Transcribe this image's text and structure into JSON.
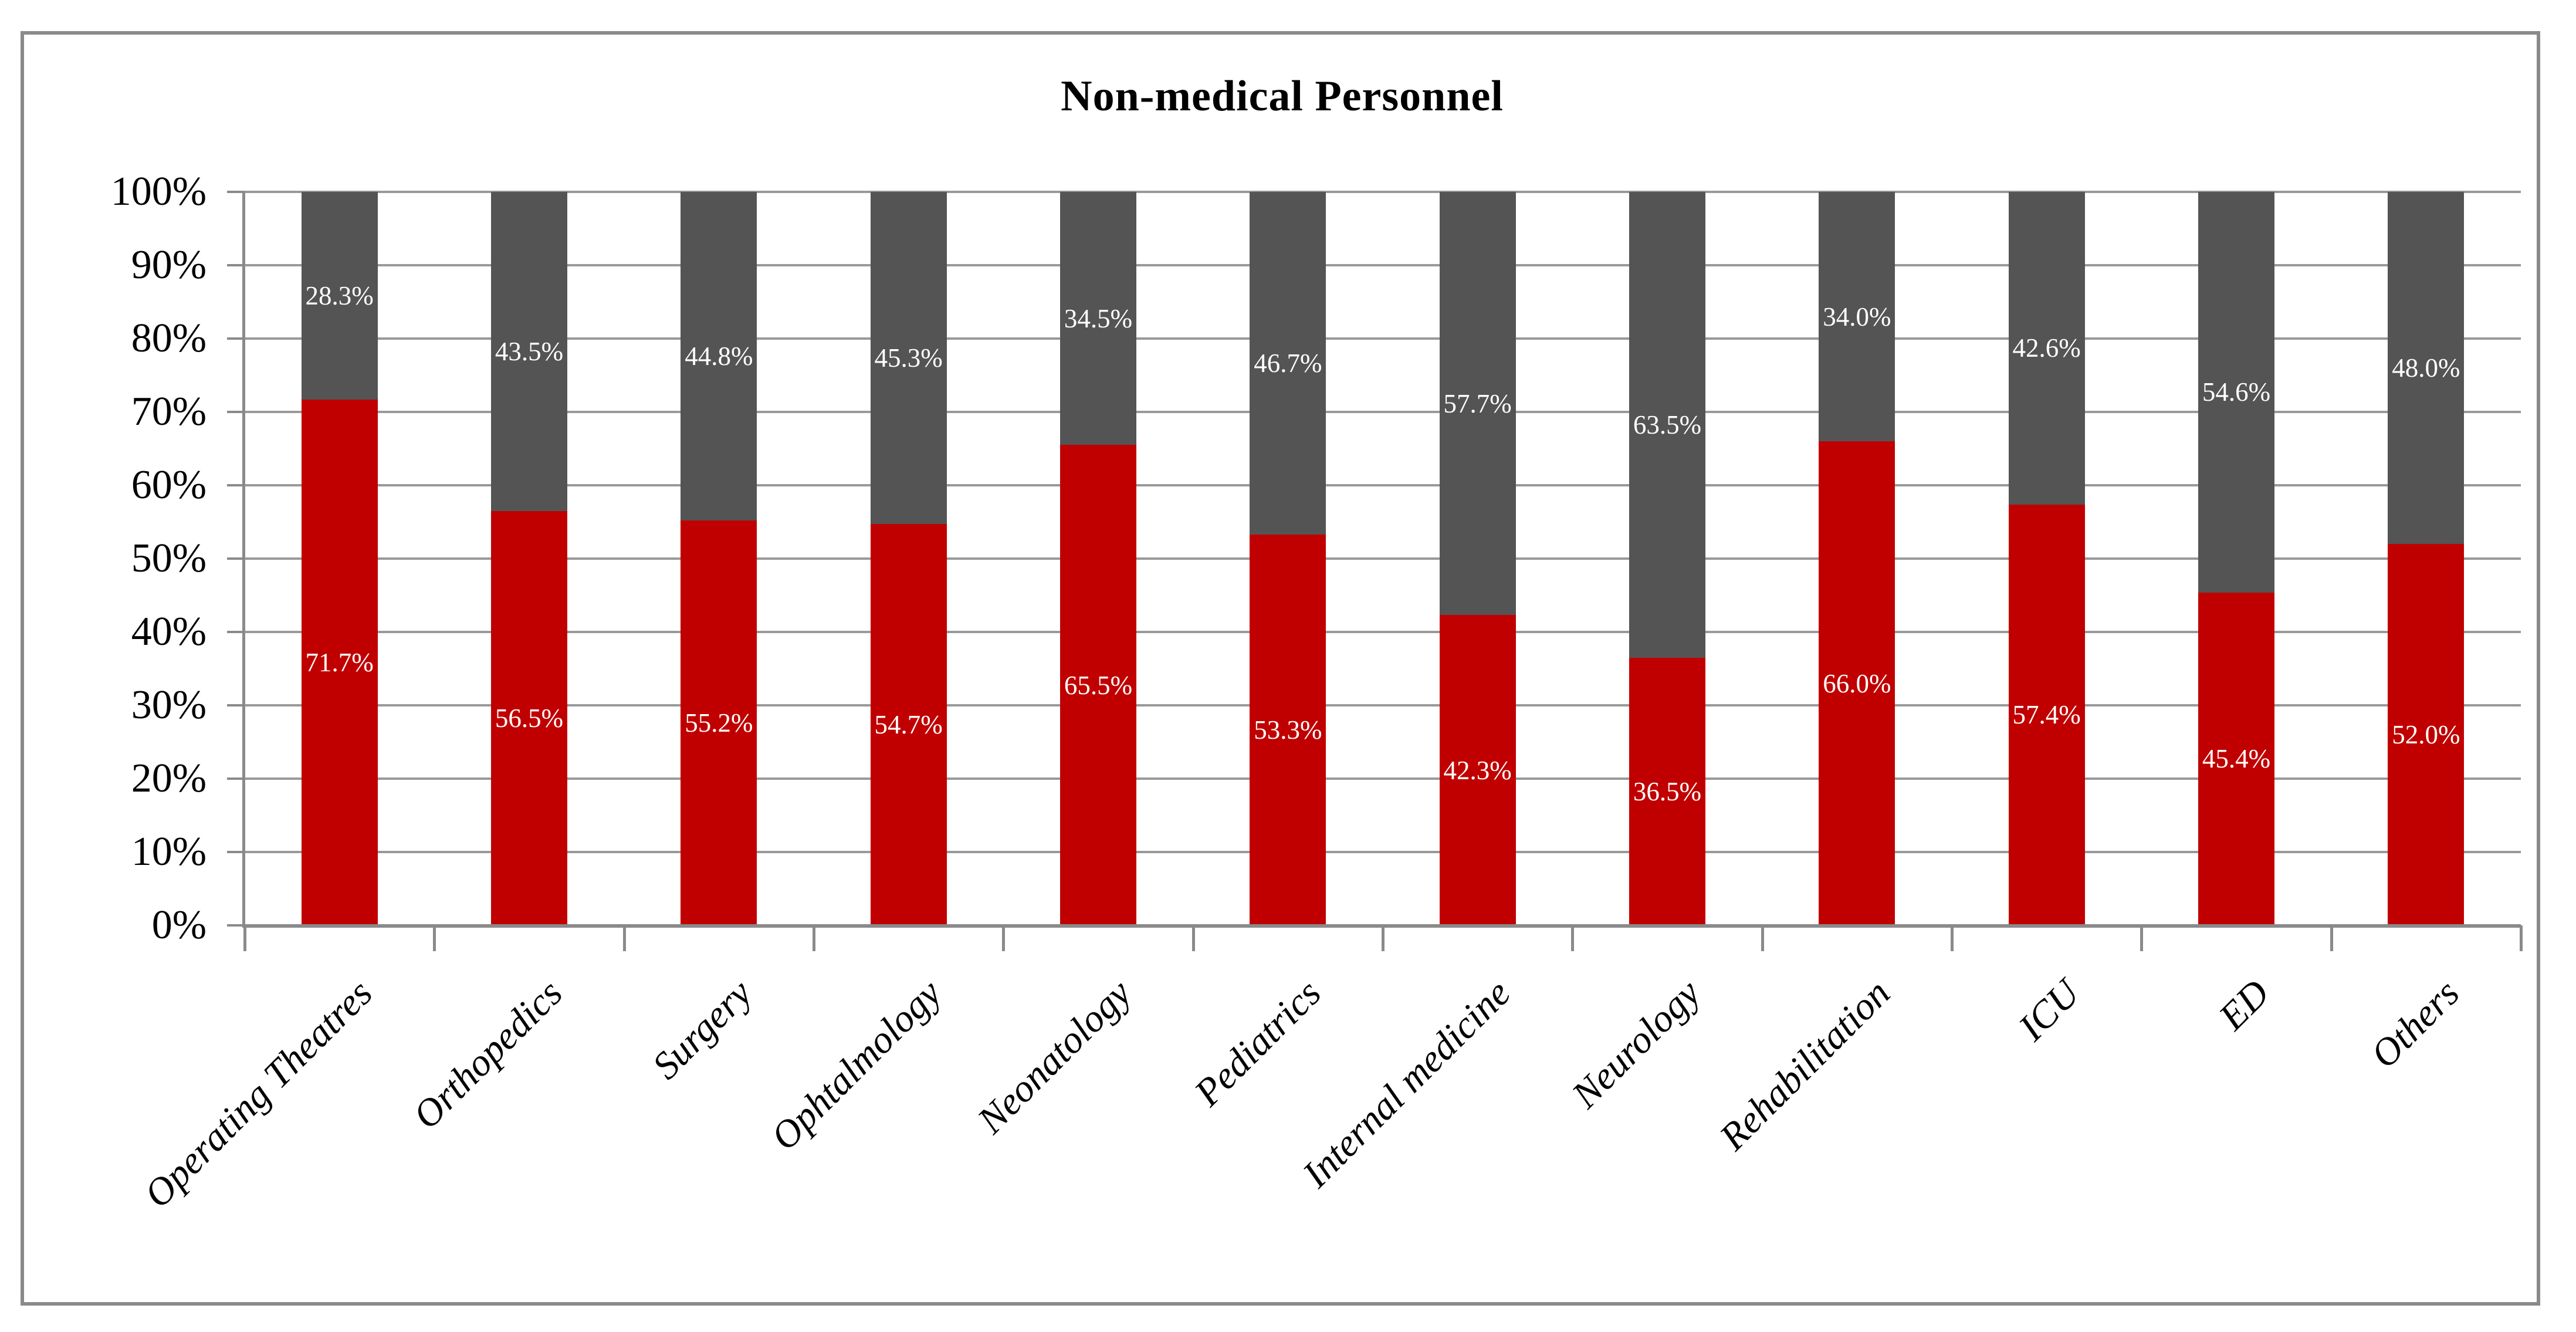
{
  "title": "Non-medical Personnel",
  "colors": {
    "red_series": "#C00000",
    "gray_series": "#545454",
    "gridline": "#999999",
    "axis": "#8a8a8a",
    "figure_border": "#8a8a8a",
    "data_label_text": "#ffffff",
    "background": "#ffffff"
  },
  "y_axis": {
    "tick_labels": [
      "100%",
      "90%",
      "80%",
      "70%",
      "60%",
      "50%",
      "40%",
      "30%",
      "20%",
      "10%",
      "0%"
    ],
    "min": 0,
    "max": 100,
    "step": 10
  },
  "chart_data": {
    "type": "bar",
    "stacked": true,
    "orientation": "vertical",
    "title": "Non-medical Personnel",
    "categories": [
      "Operating Theatres",
      "Orthopedics",
      "Surgery",
      "Ophtalmology",
      "Neonatology",
      "Pediatrics",
      "Internal medicine",
      "Neurology",
      "Rehabilitation",
      "ICU",
      "ED",
      "Others"
    ],
    "series": [
      {
        "name": "red-bottom-segment",
        "color": "#C00000",
        "values": [
          71.7,
          56.5,
          55.2,
          54.7,
          65.5,
          53.3,
          42.3,
          36.5,
          66.0,
          57.4,
          45.4,
          52.0
        ]
      },
      {
        "name": "gray-top-segment",
        "color": "#545454",
        "values": [
          28.3,
          43.5,
          44.8,
          45.3,
          34.5,
          46.7,
          57.7,
          63.5,
          34.0,
          42.6,
          54.6,
          48.0
        ]
      }
    ],
    "data_labels": {
      "format": "0.0%",
      "position": "center",
      "color": "#ffffff"
    },
    "ylim": [
      0,
      100
    ],
    "grid": true,
    "legend": "none",
    "x_label_rotation_deg": 45
  }
}
